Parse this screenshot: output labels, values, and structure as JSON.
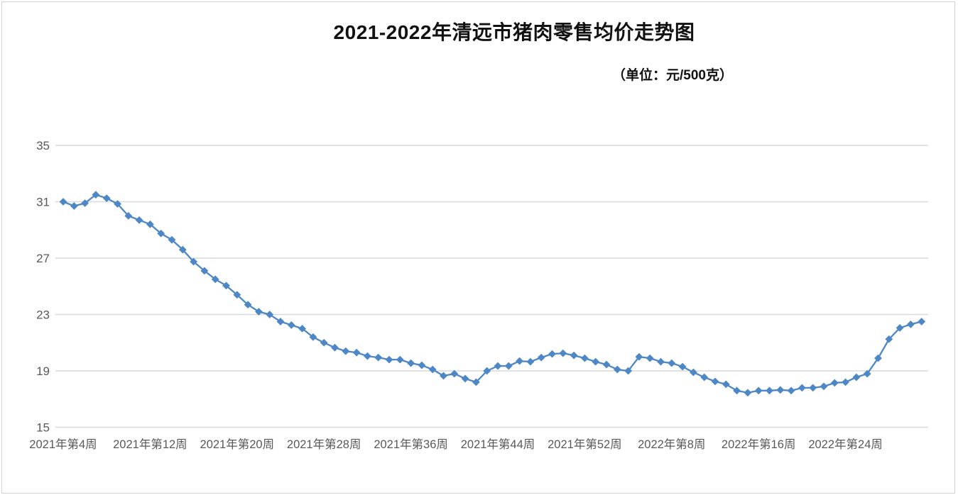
{
  "frame": {
    "background": "#FFFFFF",
    "border_color": "#D2D2D2"
  },
  "header": {
    "title": "2021-2022年清远市猪肉零售均价走势图",
    "unit_note": "（单位：元/500克）"
  },
  "chart_data": {
    "type": "line",
    "title": "2021-2022年清远市猪肉零售均价走势图",
    "unit": "元/500克",
    "legend": "none",
    "grid": "horizontal",
    "ylim": [
      15,
      35
    ],
    "y_ticks": [
      15,
      19,
      23,
      27,
      31,
      35
    ],
    "x_tick_labels": [
      "2021年第4周",
      "2021年第12周",
      "2021年第20周",
      "2021年第28周",
      "2021年第36周",
      "2021年第44周",
      "2021年第52周",
      "2022年第8周",
      "2022年第16周",
      "2022年第24周"
    ],
    "x_tick_indices": [
      0,
      8,
      16,
      24,
      32,
      40,
      48,
      56,
      64,
      72
    ],
    "x_tick_interval_weeks": 8,
    "marker": "diamond",
    "series": [
      {
        "name": "猪肉零售均价",
        "values": [
          31.0,
          30.7,
          30.9,
          31.5,
          31.25,
          30.85,
          30.0,
          29.7,
          29.4,
          28.75,
          28.3,
          27.6,
          26.75,
          26.1,
          25.5,
          25.05,
          24.4,
          23.7,
          23.2,
          23.0,
          22.5,
          22.25,
          22.0,
          21.4,
          21.0,
          20.65,
          20.4,
          20.3,
          20.05,
          19.95,
          19.8,
          19.8,
          19.55,
          19.4,
          19.1,
          18.65,
          18.8,
          18.45,
          18.2,
          19.0,
          19.35,
          19.35,
          19.7,
          19.65,
          19.95,
          20.2,
          20.25,
          20.1,
          19.9,
          19.65,
          19.45,
          19.1,
          19.0,
          20.0,
          19.9,
          19.65,
          19.55,
          19.3,
          18.9,
          18.55,
          18.25,
          18.05,
          17.6,
          17.45,
          17.6,
          17.6,
          17.65,
          17.6,
          17.8,
          17.8,
          17.9,
          18.15,
          18.2,
          18.55,
          18.8,
          19.9,
          21.25,
          22.05,
          22.3,
          22.5
        ]
      }
    ],
    "colors": {
      "line": "#4E87C6",
      "marker": "#4E87C6",
      "grid": "#D9D9D9",
      "tick_text": "#595959",
      "title_text": "#111111"
    }
  }
}
